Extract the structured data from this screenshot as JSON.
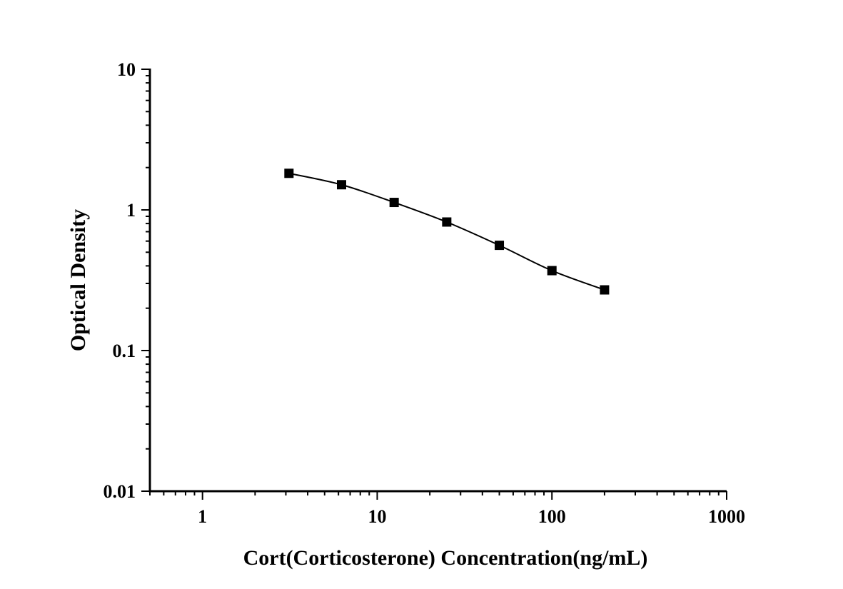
{
  "chart_data": {
    "type": "line",
    "xlabel": "Cort(Corticosterone) Concentration(ng/mL)",
    "ylabel": "Optical Density",
    "x_scale": "log",
    "y_scale": "log",
    "xlim": [
      0.5,
      1000
    ],
    "ylim": [
      0.01,
      10
    ],
    "x_ticks": [
      {
        "value": 1,
        "label": "1"
      },
      {
        "value": 10,
        "label": "10"
      },
      {
        "value": 100,
        "label": "100"
      },
      {
        "value": 1000,
        "label": "1000"
      }
    ],
    "y_ticks": [
      {
        "value": 0.01,
        "label": "0.01"
      },
      {
        "value": 0.1,
        "label": "0.1"
      },
      {
        "value": 1,
        "label": "1"
      },
      {
        "value": 10,
        "label": "10"
      }
    ],
    "grid": false,
    "legend": "none",
    "series": [
      {
        "marker": "square",
        "color": "#000000",
        "x": [
          3.125,
          6.25,
          12.5,
          25,
          50,
          100,
          200
        ],
        "y": [
          1.82,
          1.51,
          1.13,
          0.82,
          0.56,
          0.37,
          0.27
        ]
      }
    ]
  }
}
